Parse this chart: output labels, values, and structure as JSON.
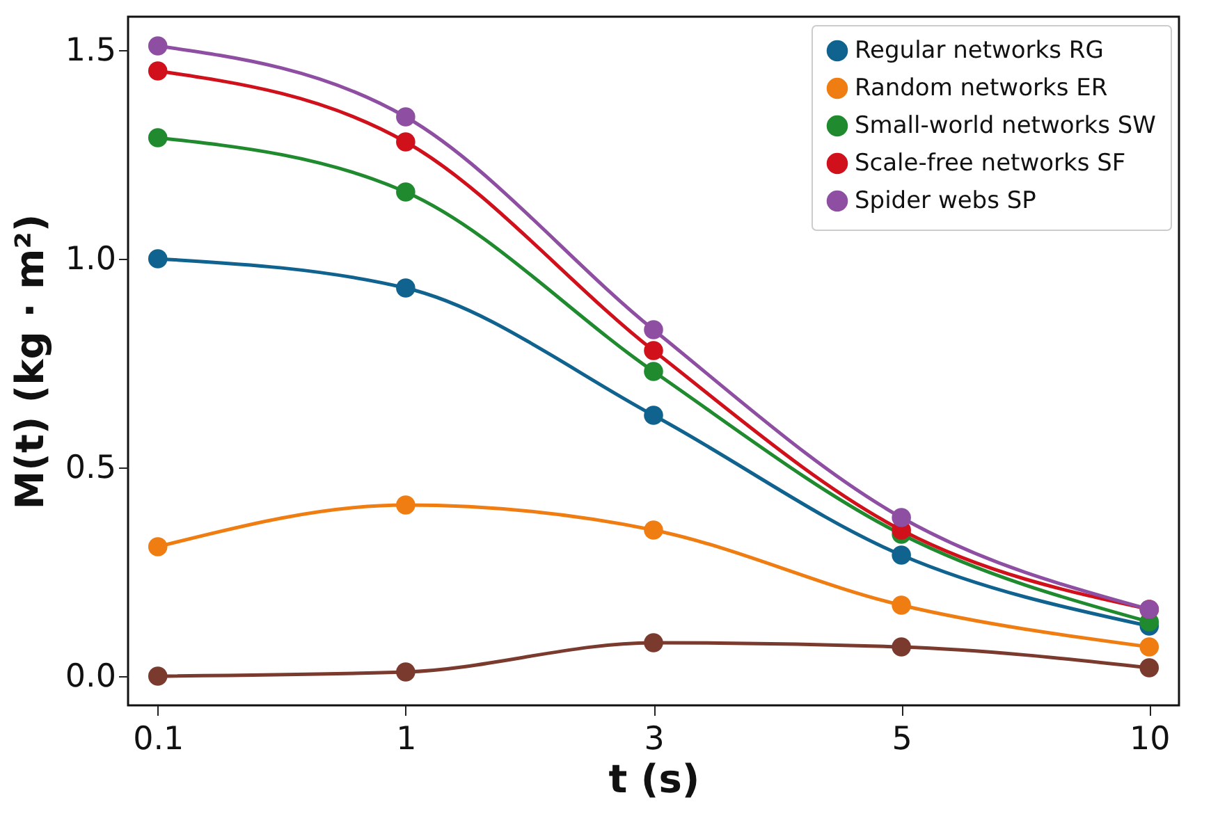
{
  "chart_data": {
    "type": "line",
    "xlabel": "t (s)",
    "ylabel": "M(t) (kg · m²)",
    "categories": [
      "0.1",
      "1",
      "3",
      "5",
      "10"
    ],
    "series": [
      {
        "name": "Regular networks RG",
        "color": "#10628f",
        "values": [
          1.0,
          0.93,
          0.625,
          0.29,
          0.12
        ]
      },
      {
        "name": "Random networks ER",
        "color": "#f07d12",
        "values": [
          0.31,
          0.41,
          0.35,
          0.17,
          0.07
        ]
      },
      {
        "name": "Small-world networks SW",
        "color": "#1f8a2e",
        "values": [
          1.29,
          1.16,
          0.73,
          0.34,
          0.13
        ]
      },
      {
        "name": "Scale-free networks SF",
        "color": "#d0111b",
        "values": [
          1.45,
          1.28,
          0.78,
          0.35,
          0.16
        ]
      },
      {
        "name": "Spider webs SP",
        "color": "#8e4fa3",
        "values": [
          1.51,
          1.34,
          0.83,
          0.38,
          0.16
        ]
      },
      {
        "color": "#7b3a2e",
        "values": [
          0.0,
          0.01,
          0.08,
          0.07,
          0.02
        ]
      }
    ],
    "ylim": [
      -0.07,
      1.58
    ],
    "yticks": [
      {
        "value": 0,
        "label": "0.0"
      },
      0.5,
      {
        "value": 1,
        "label": "1.0"
      },
      1.5
    ],
    "grid": false,
    "legend": "top right",
    "marker": "circle",
    "line_style": "solid"
  }
}
